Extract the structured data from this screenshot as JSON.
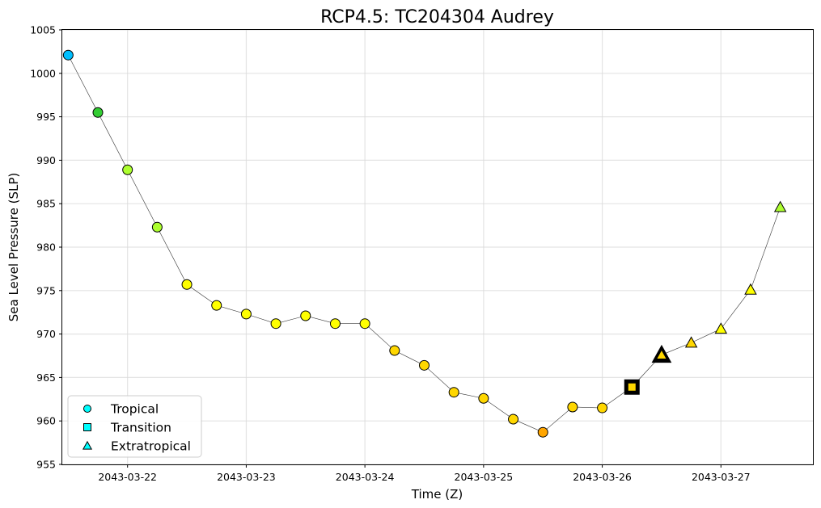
{
  "chart_data": {
    "type": "line",
    "title": "RCP4.5: TC204304 Audrey",
    "xlabel": "Time (Z)",
    "ylabel": "Sea Level Pressure (SLP)",
    "ylim": [
      955,
      1005
    ],
    "yticks": [
      955,
      960,
      965,
      970,
      975,
      980,
      985,
      990,
      995,
      1000,
      1005
    ],
    "xlim": [
      "2043-03-21T10:48",
      "2043-03-27T18:36"
    ],
    "xticks": [
      "2043-03-22",
      "2043-03-23",
      "2043-03-24",
      "2043-03-25",
      "2043-03-26",
      "2043-03-27"
    ],
    "grid": true,
    "legend": {
      "placement": "lower-left",
      "entries": [
        {
          "label": "Tropical",
          "marker": "circle",
          "color": "#00ffff"
        },
        {
          "label": "Transition",
          "marker": "square",
          "color": "#00ffff"
        },
        {
          "label": "Extratropical",
          "marker": "triangle",
          "color": "#00ffff"
        }
      ]
    },
    "points": [
      {
        "time": "2043-03-21T12:00",
        "slp": 1002.1,
        "phase": "Tropical",
        "color": "#00bfff"
      },
      {
        "time": "2043-03-21T18:00",
        "slp": 995.5,
        "phase": "Tropical",
        "color": "#32cd32"
      },
      {
        "time": "2043-03-22T00:00",
        "slp": 988.9,
        "phase": "Tropical",
        "color": "#adff2f"
      },
      {
        "time": "2043-03-22T06:00",
        "slp": 982.3,
        "phase": "Tropical",
        "color": "#adff2f"
      },
      {
        "time": "2043-03-22T12:00",
        "slp": 975.7,
        "phase": "Tropical",
        "color": "#ffff00"
      },
      {
        "time": "2043-03-22T18:00",
        "slp": 973.3,
        "phase": "Tropical",
        "color": "#ffff00"
      },
      {
        "time": "2043-03-23T00:00",
        "slp": 972.3,
        "phase": "Tropical",
        "color": "#ffff00"
      },
      {
        "time": "2043-03-23T06:00",
        "slp": 971.2,
        "phase": "Tropical",
        "color": "#ffff00"
      },
      {
        "time": "2043-03-23T12:00",
        "slp": 972.1,
        "phase": "Tropical",
        "color": "#ffff00"
      },
      {
        "time": "2043-03-23T18:00",
        "slp": 971.2,
        "phase": "Tropical",
        "color": "#ffff00"
      },
      {
        "time": "2043-03-24T00:00",
        "slp": 971.2,
        "phase": "Tropical",
        "color": "#ffff00"
      },
      {
        "time": "2043-03-24T06:00",
        "slp": 968.1,
        "phase": "Tropical",
        "color": "#ffd700"
      },
      {
        "time": "2043-03-24T12:00",
        "slp": 966.4,
        "phase": "Tropical",
        "color": "#ffd700"
      },
      {
        "time": "2043-03-24T18:00",
        "slp": 963.3,
        "phase": "Tropical",
        "color": "#ffd700"
      },
      {
        "time": "2043-03-25T00:00",
        "slp": 962.6,
        "phase": "Tropical",
        "color": "#ffd700"
      },
      {
        "time": "2043-03-25T06:00",
        "slp": 960.2,
        "phase": "Tropical",
        "color": "#ffd700"
      },
      {
        "time": "2043-03-25T12:00",
        "slp": 958.7,
        "phase": "Tropical",
        "color": "#ffa500"
      },
      {
        "time": "2043-03-25T18:00",
        "slp": 961.6,
        "phase": "Tropical",
        "color": "#ffd700"
      },
      {
        "time": "2043-03-26T00:00",
        "slp": 961.5,
        "phase": "Tropical",
        "color": "#ffd700"
      },
      {
        "time": "2043-03-26T06:00",
        "slp": 963.9,
        "phase": "Transition",
        "color": "#ffd700",
        "highlight": true
      },
      {
        "time": "2043-03-26T12:00",
        "slp": 967.6,
        "phase": "Extratropical",
        "color": "#ffd700",
        "highlight": true
      },
      {
        "time": "2043-03-26T18:00",
        "slp": 969.0,
        "phase": "Extratropical",
        "color": "#ffd700"
      },
      {
        "time": "2043-03-27T00:00",
        "slp": 970.6,
        "phase": "Extratropical",
        "color": "#ffff00"
      },
      {
        "time": "2043-03-27T06:00",
        "slp": 975.1,
        "phase": "Extratropical",
        "color": "#ffff00"
      },
      {
        "time": "2043-03-27T12:00",
        "slp": 984.6,
        "phase": "Extratropical",
        "color": "#adff2f"
      }
    ]
  }
}
